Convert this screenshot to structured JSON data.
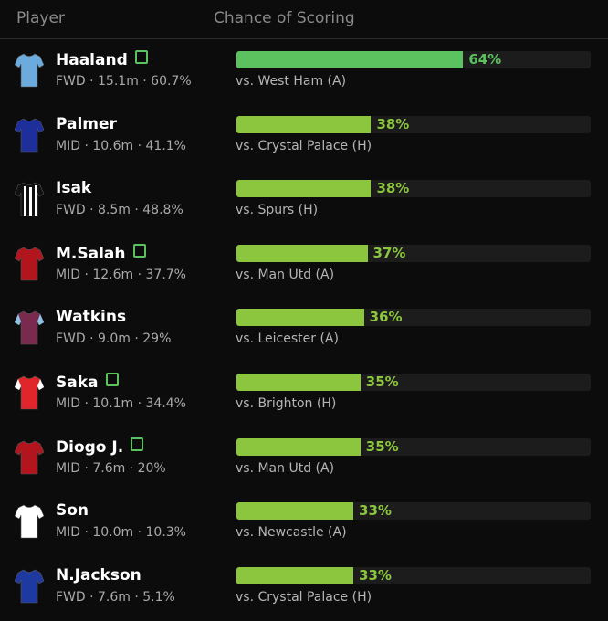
{
  "header": {
    "player": "Player",
    "chance": "Chance of Scoring"
  },
  "scale_max": 100,
  "rows": [
    {
      "name": "Haaland",
      "badge": true,
      "meta": "FWD · 15.1m · 60.7%",
      "chance": 64,
      "chance_label": "64%",
      "fixture": "vs. West Ham (A)",
      "color": "#5cc15f",
      "shirt": "#6cabdd",
      "trim": "#6cabdd"
    },
    {
      "name": "Palmer",
      "badge": false,
      "meta": "MID · 10.6m · 41.1%",
      "chance": 38,
      "chance_label": "38%",
      "fixture": "vs. Crystal Palace (H)",
      "color": "#8cc63f",
      "shirt": "#1e2f9c",
      "trim": "#1e2f9c"
    },
    {
      "name": "Isak",
      "badge": false,
      "meta": "FWD · 8.5m · 48.8%",
      "chance": 38,
      "chance_label": "38%",
      "fixture": "vs. Spurs (H)",
      "color": "#8cc63f",
      "shirt": "#111111",
      "trim": "#ffffff"
    },
    {
      "name": "M.Salah",
      "badge": true,
      "meta": "MID · 12.6m · 37.7%",
      "chance": 37,
      "chance_label": "37%",
      "fixture": "vs. Man Utd (A)",
      "color": "#8cc63f",
      "shirt": "#b3151e",
      "trim": "#b3151e"
    },
    {
      "name": "Watkins",
      "badge": false,
      "meta": "FWD · 9.0m · 29%",
      "chance": 36,
      "chance_label": "36%",
      "fixture": "vs. Leicester (A)",
      "color": "#8cc63f",
      "shirt": "#7a2a4f",
      "trim": "#8fc1e6"
    },
    {
      "name": "Saka",
      "badge": true,
      "meta": "MID · 10.1m · 34.4%",
      "chance": 35,
      "chance_label": "35%",
      "fixture": "vs. Brighton (H)",
      "color": "#8cc63f",
      "shirt": "#e0262b",
      "trim": "#ffffff"
    },
    {
      "name": "Diogo J.",
      "badge": true,
      "meta": "MID · 7.6m · 20%",
      "chance": 35,
      "chance_label": "35%",
      "fixture": "vs. Man Utd (A)",
      "color": "#8cc63f",
      "shirt": "#b3151e",
      "trim": "#b3151e"
    },
    {
      "name": "Son",
      "badge": false,
      "meta": "MID · 10.0m · 10.3%",
      "chance": 33,
      "chance_label": "33%",
      "fixture": "vs. Newcastle (A)",
      "color": "#8cc63f",
      "shirt": "#ffffff",
      "trim": "#ffffff"
    },
    {
      "name": "N.Jackson",
      "badge": false,
      "meta": "FWD · 7.6m · 5.1%",
      "chance": 33,
      "chance_label": "33%",
      "fixture": "vs. Crystal Palace (H)",
      "color": "#8cc63f",
      "shirt": "#1e3aa0",
      "trim": "#1e3aa0"
    }
  ]
}
